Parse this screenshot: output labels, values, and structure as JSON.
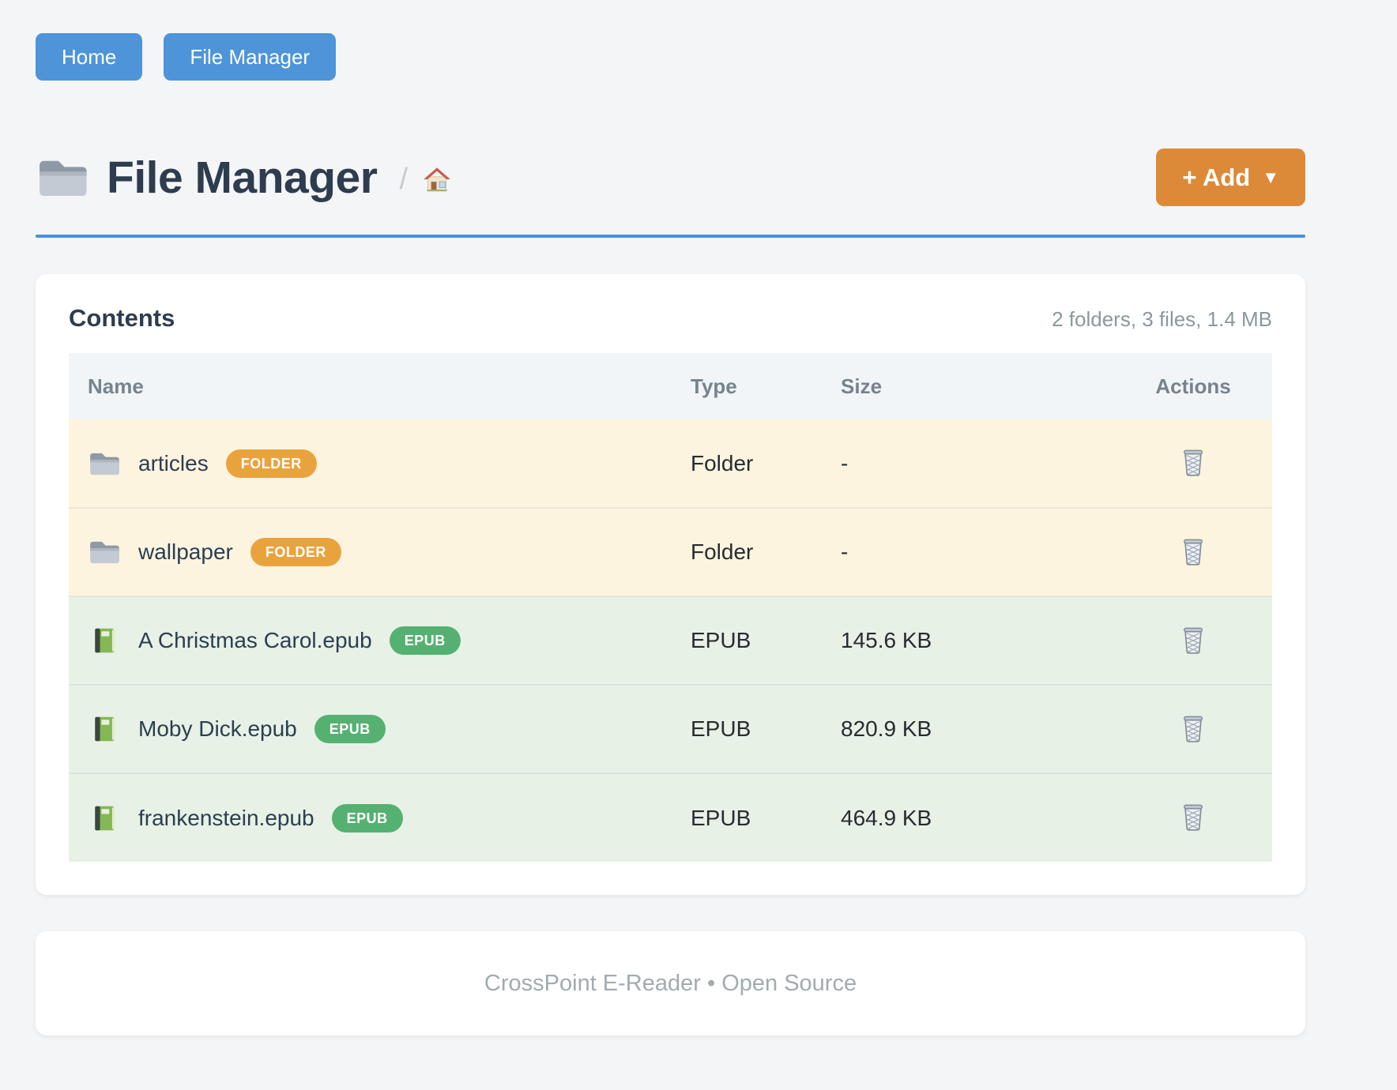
{
  "nav": {
    "items": [
      {
        "label": "Home"
      },
      {
        "label": "File Manager"
      }
    ]
  },
  "header": {
    "icon": "folder-icon",
    "title": "File Manager",
    "breadcrumb_separator": "/",
    "breadcrumb_home_icon": "house-icon",
    "add_button": {
      "label": "+ Add",
      "caret": "▼"
    }
  },
  "panel": {
    "title": "Contents",
    "summary": "2 folders, 3 files, 1.4 MB"
  },
  "table": {
    "columns": [
      "Name",
      "Type",
      "Size",
      "Actions"
    ],
    "rows": [
      {
        "kind": "folder",
        "icon": "folder-icon",
        "name": "articles",
        "badge": "FOLDER",
        "type": "Folder",
        "size": "-",
        "action_icon": "wastebasket-icon"
      },
      {
        "kind": "folder",
        "icon": "folder-icon",
        "name": "wallpaper",
        "badge": "FOLDER",
        "type": "Folder",
        "size": "-",
        "action_icon": "wastebasket-icon"
      },
      {
        "kind": "file",
        "icon": "green-book-icon",
        "name": "A Christmas Carol.epub",
        "badge": "EPUB",
        "type": "EPUB",
        "size": "145.6 KB",
        "action_icon": "wastebasket-icon"
      },
      {
        "kind": "file",
        "icon": "green-book-icon",
        "name": "Moby Dick.epub",
        "badge": "EPUB",
        "type": "EPUB",
        "size": "820.9 KB",
        "action_icon": "wastebasket-icon"
      },
      {
        "kind": "file",
        "icon": "green-book-icon",
        "name": "frankenstein.epub",
        "badge": "EPUB",
        "type": "EPUB",
        "size": "464.9 KB",
        "action_icon": "wastebasket-icon"
      }
    ]
  },
  "footer": {
    "text": "CrossPoint E-Reader • Open Source"
  },
  "colors": {
    "page_bg": "#f4f5f6",
    "primary_blue": "#4e94d8",
    "rule_blue": "#4a90d9",
    "accent_orange": "#dc8a38",
    "badge_folder": "#e9a33d",
    "badge_epub": "#55b171",
    "row_folder_bg": "#fcf4df",
    "row_file_bg": "#e7f1e6",
    "table_header_bg": "#f2f5f8",
    "heading_text": "#2e3c4f",
    "muted_text": "#8d979c"
  }
}
